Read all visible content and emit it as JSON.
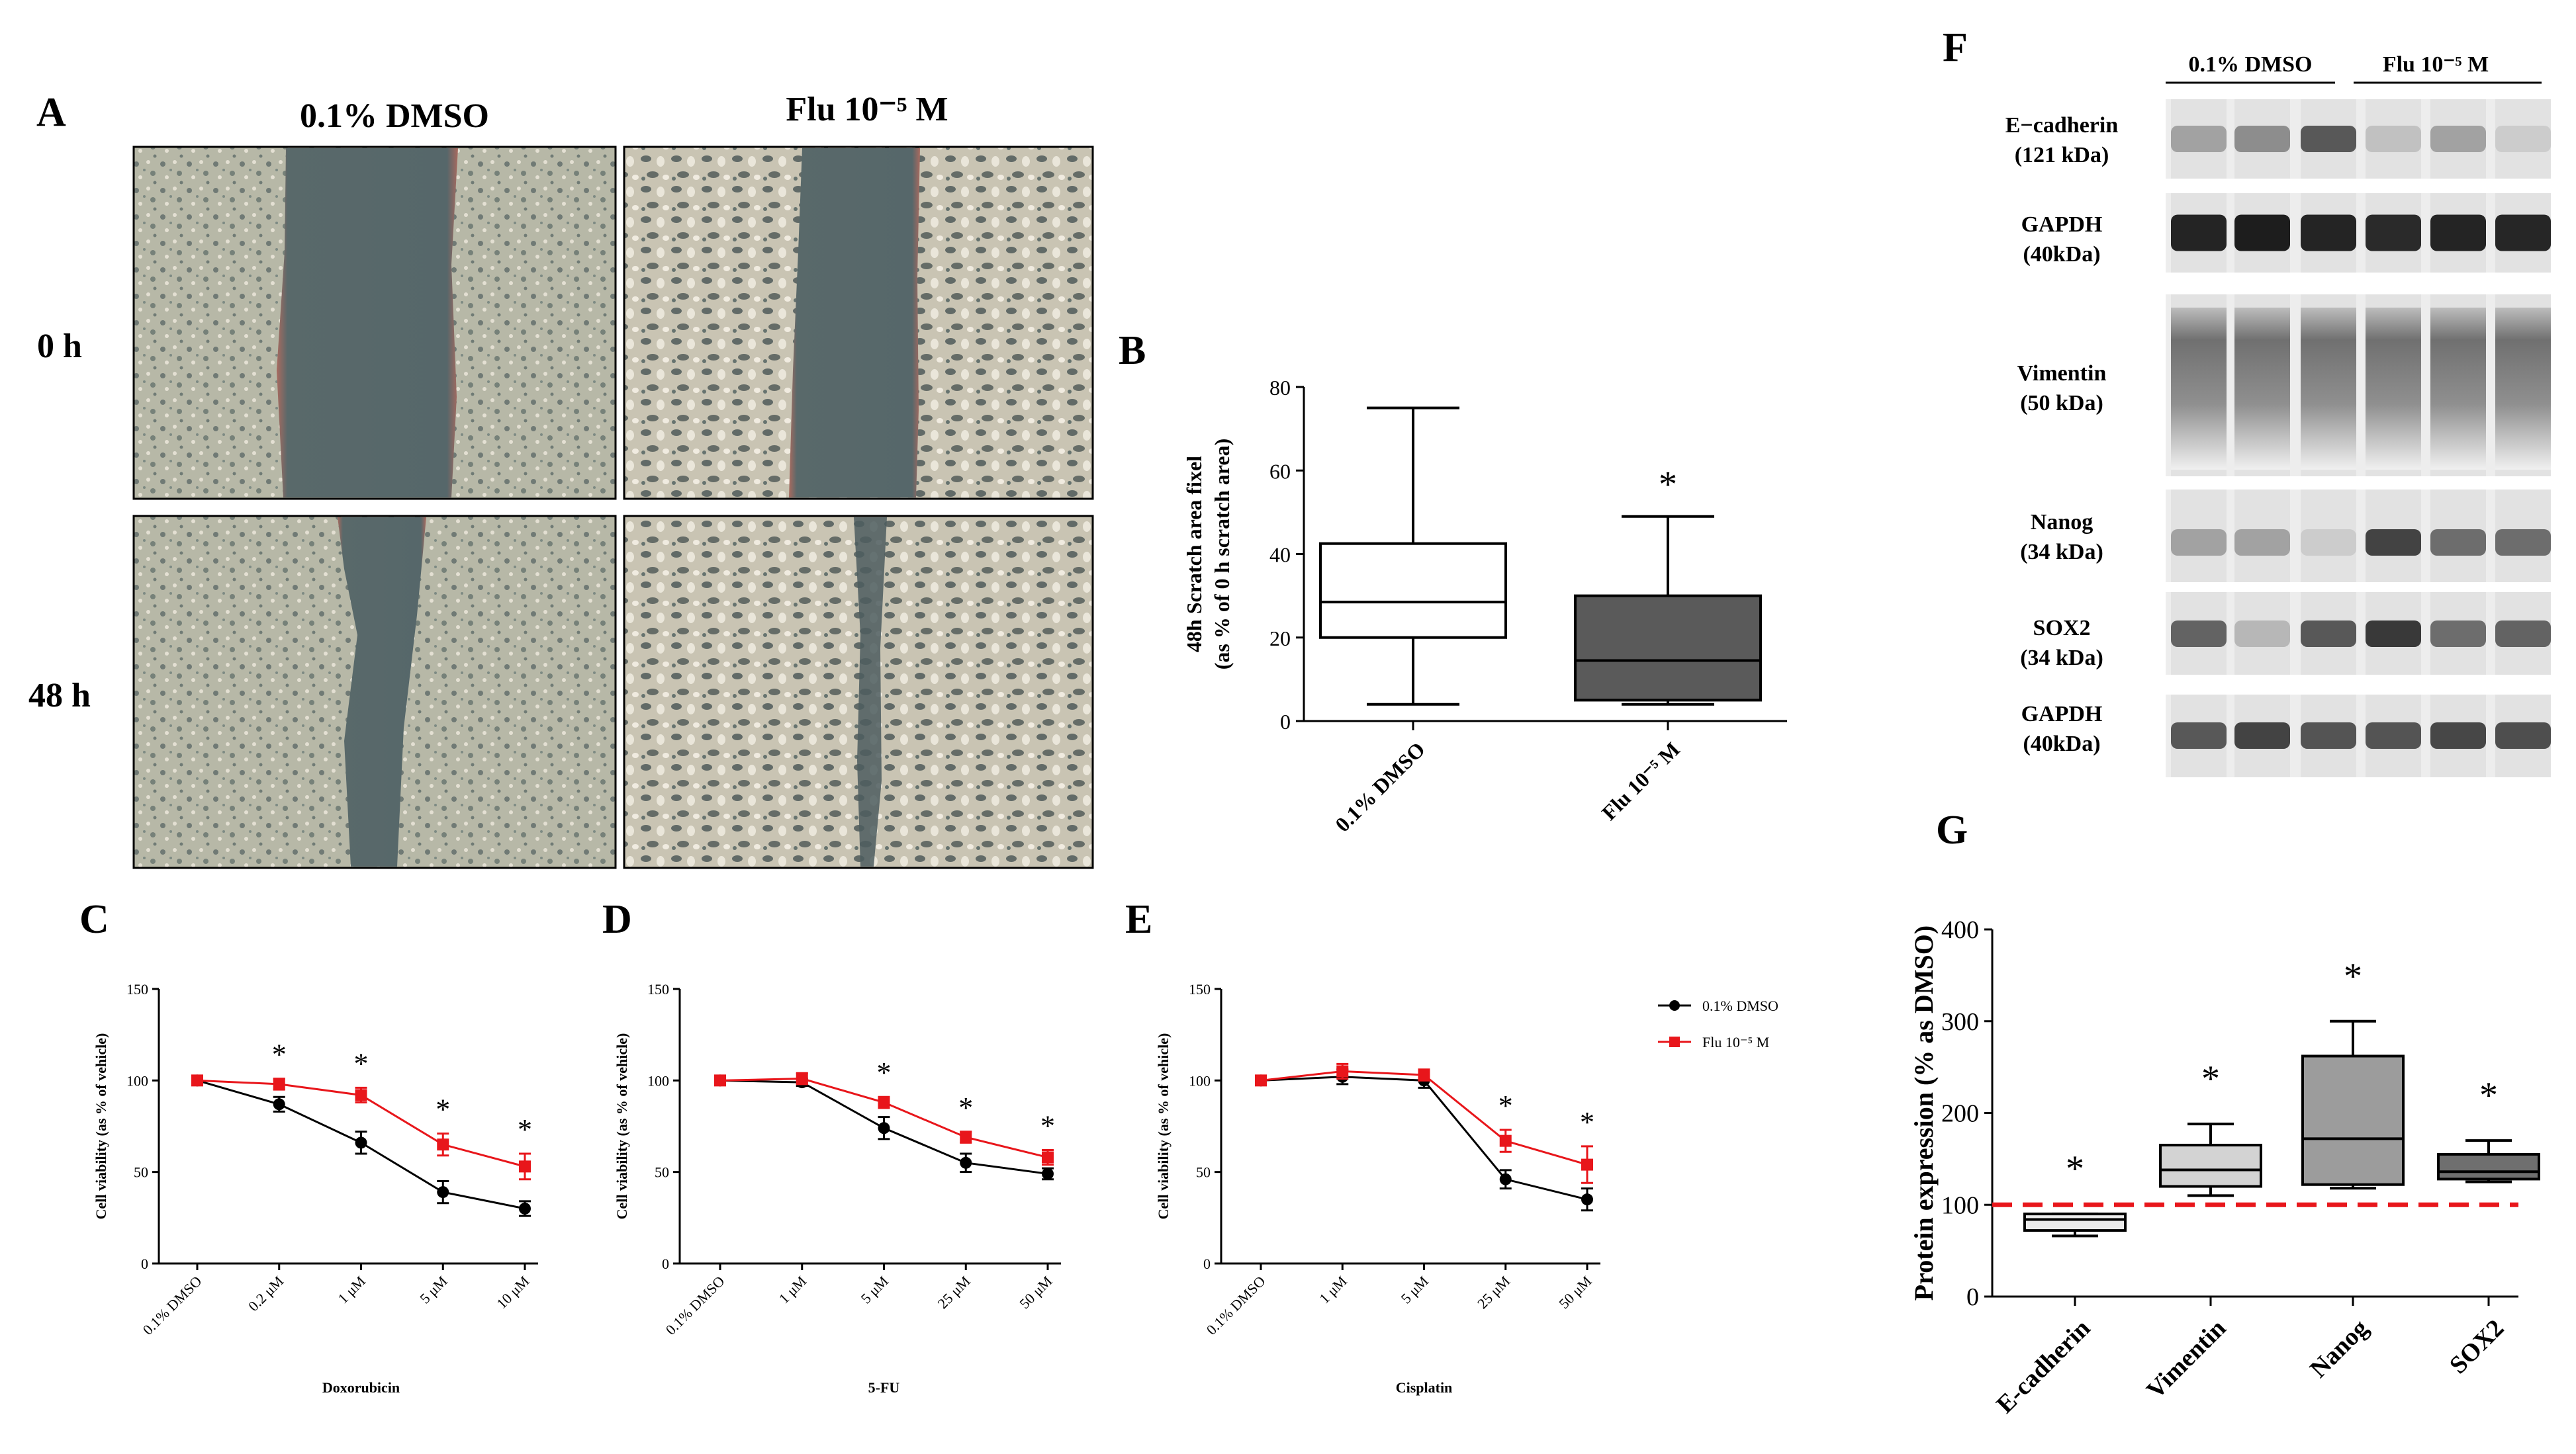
{
  "panel_labels": {
    "A": "A",
    "B": "B",
    "C": "C",
    "D": "D",
    "E": "E",
    "F": "F",
    "G": "G"
  },
  "panelA": {
    "col_labels": [
      "0.1% DMSO",
      "Flu 10⁻⁵ M"
    ],
    "row_labels": [
      "0 h",
      "48 h"
    ]
  },
  "colors": {
    "dmso": "#000000",
    "flu": "#e8161b",
    "dashed": "#e8161b",
    "box_b_flu": "#5a5a5a"
  },
  "chart_data": [
    {
      "id": "B",
      "type": "box",
      "ylabel_lines": [
        "48h Scratch area fixel",
        "(as % of 0 h scratch area)"
      ],
      "ylim": [
        0,
        80
      ],
      "yticks": [
        0,
        20,
        40,
        60,
        80
      ],
      "categories": [
        "0.1% DMSO",
        "Flu 10⁻⁵ M"
      ],
      "boxes": [
        {
          "min": 4,
          "q1": 20,
          "median": 28.5,
          "q3": 42.5,
          "max": 75
        },
        {
          "min": 4,
          "q1": 5,
          "median": 14.5,
          "q3": 30,
          "max": 49
        }
      ],
      "significance": [
        "",
        "*"
      ]
    },
    {
      "id": "C",
      "type": "line",
      "xlabel": "Doxorubicin",
      "ylabel": "Cell viability (as % of vehicle)",
      "categories": [
        "0.1% DMSO",
        "0.2 μM",
        "1 μM",
        "5 μM",
        "10 μM"
      ],
      "ylim": [
        0,
        150
      ],
      "yticks": [
        0,
        50,
        100,
        150
      ],
      "series": [
        {
          "name": "0.1% DMSO",
          "values": [
            100,
            87,
            66,
            39,
            30
          ],
          "errors": [
            2,
            4,
            6,
            6,
            4
          ]
        },
        {
          "name": "Flu 10⁻⁵ M",
          "values": [
            100,
            98,
            92,
            65,
            53
          ],
          "errors": [
            2,
            3,
            4,
            6,
            7
          ]
        }
      ],
      "significance": [
        "",
        "*",
        "*",
        "*",
        "*"
      ]
    },
    {
      "id": "D",
      "type": "line",
      "xlabel": "5-FU",
      "ylabel": "Cell viability (as % of vehicle)",
      "categories": [
        "0.1% DMSO",
        "1 μM",
        "5 μM",
        "25 μM",
        "50 μM"
      ],
      "ylim": [
        0,
        150
      ],
      "yticks": [
        0,
        50,
        100,
        150
      ],
      "series": [
        {
          "name": "0.1% DMSO",
          "values": [
            100,
            99,
            74,
            55,
            49
          ],
          "errors": [
            2,
            2,
            6,
            5,
            3
          ]
        },
        {
          "name": "Flu 10⁻⁵ M",
          "values": [
            100,
            101,
            88,
            69,
            58
          ],
          "errors": [
            2,
            3,
            3,
            3,
            4
          ]
        }
      ],
      "significance": [
        "",
        "",
        "*",
        "*",
        "*"
      ]
    },
    {
      "id": "E",
      "type": "line",
      "xlabel": "Cisplatin",
      "ylabel": "Cell viability (as % of vehicle)",
      "categories": [
        "0.1% DMSO",
        "1 μM",
        "5 μM",
        "25 μM",
        "50 μM"
      ],
      "ylim": [
        0,
        150
      ],
      "yticks": [
        0,
        50,
        100,
        150
      ],
      "series": [
        {
          "name": "0.1% DMSO",
          "values": [
            100,
            102,
            100,
            46,
            35
          ],
          "errors": [
            2,
            4,
            4,
            5,
            6
          ]
        },
        {
          "name": "Flu 10⁻⁵ M",
          "values": [
            100,
            105,
            103,
            67,
            54
          ],
          "errors": [
            2,
            4,
            3,
            6,
            10
          ]
        }
      ],
      "significance": [
        "",
        "",
        "",
        "*",
        "*"
      ]
    },
    {
      "id": "G",
      "type": "box",
      "ylabel": "Protein expression (% as DMSO)",
      "ylim": [
        0,
        400
      ],
      "yticks": [
        0,
        100,
        200,
        300,
        400
      ],
      "reference_line": 100,
      "categories": [
        "E-cadherin",
        "Vimentin",
        "Nanog",
        "SOX2"
      ],
      "boxes": [
        {
          "min": 66,
          "q1": 72,
          "median": 84,
          "q3": 90,
          "max": 90,
          "fill": "#ececec"
        },
        {
          "min": 110,
          "q1": 120,
          "median": 138,
          "q3": 165,
          "max": 188,
          "fill": "#d3d3d3"
        },
        {
          "min": 118,
          "q1": 122,
          "median": 172,
          "q3": 262,
          "max": 300,
          "fill": "#9c9c9c"
        },
        {
          "min": 125,
          "q1": 128,
          "median": 136,
          "q3": 155,
          "max": 170,
          "fill": "#6f6f6f"
        }
      ],
      "significance": [
        "*",
        "*",
        "*",
        "*"
      ]
    }
  ],
  "legend": {
    "items": [
      "0.1% DMSO",
      "Flu 10⁻⁵ M"
    ]
  },
  "panelF": {
    "group_labels": [
      "0.1% DMSO",
      "Flu 10⁻⁵ M"
    ],
    "rows": [
      {
        "name": "E−cadherin",
        "size": "(121 kDa)"
      },
      {
        "name": "GAPDH",
        "size": "(40kDa)"
      },
      {
        "name": "Vimentin",
        "size": "(50 kDa)"
      },
      {
        "name": "Nanog",
        "size": "(34 kDa)"
      },
      {
        "name": "SOX2",
        "size": "(34 kDa)"
      },
      {
        "name": "GAPDH",
        "size": "(40kDa)"
      }
    ]
  }
}
